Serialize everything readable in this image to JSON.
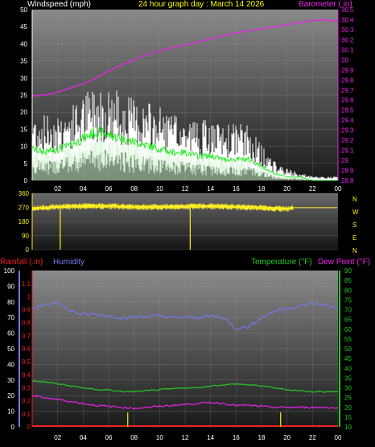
{
  "header": {
    "wind_title": "Windspeed (mph)",
    "graph_title": "24 hour graph day : March 14 2026",
    "baro_title": "Barometer (.in)"
  },
  "bottom_header": {
    "rain_title": "Rainfall (.in)",
    "hum_title": "Humidity",
    "temp_title": "Temperature (°F)",
    "dew_title": "Dew Point (°F)"
  },
  "colors": {
    "wind_gust": "#ffffff",
    "wind_avg": "#c8f0c8",
    "wind_dir_line": "#22ee22",
    "barometer": "#ee22ee",
    "direction": "#ffee22",
    "rain": "#ee2222",
    "humidity": "#7777ee",
    "temperature": "#22cc22",
    "dewpoint": "#ee22ee",
    "title": "#ffff00"
  },
  "chart_data": [
    {
      "type": "line",
      "title": "24 hour graph day : March 14 2026",
      "x_ticks": [
        "02",
        "04",
        "06",
        "08",
        "10",
        "12",
        "14",
        "16",
        "18",
        "20",
        "22",
        "00"
      ],
      "ylabel": "Windspeed (mph)",
      "ylim": [
        0,
        50
      ],
      "y_ticks": [
        "0",
        "5",
        "10",
        "15",
        "20",
        "25",
        "30",
        "35",
        "40",
        "45",
        "50"
      ],
      "y2label": "Barometer (.in)",
      "y2lim": [
        28.8,
        30.5
      ],
      "y2_ticks": [
        "28.8",
        "28.9",
        "29",
        "29.1",
        "29.2",
        "29.3",
        "29.4",
        "29.5",
        "29.6",
        "29.7",
        "29.8",
        "29.9",
        "30",
        "30.1",
        "30.2",
        "30.3",
        "30.4",
        "30.5"
      ],
      "series": [
        {
          "name": "Windspeed (mph)",
          "hours": [
            0,
            1,
            2,
            3,
            4,
            5,
            6,
            7,
            8,
            9,
            10,
            11,
            12,
            13,
            14,
            15,
            16,
            17,
            18,
            19,
            20,
            21,
            22,
            23,
            24
          ],
          "peak": [
            18,
            17,
            18,
            19,
            22,
            25,
            24,
            23,
            21,
            20,
            19,
            17,
            16,
            16,
            15,
            14,
            15,
            14,
            9,
            5,
            3,
            2,
            1,
            1,
            1
          ],
          "avg": [
            9,
            8,
            9,
            10,
            12,
            14,
            13,
            12,
            11,
            10,
            9,
            8,
            8,
            7,
            7,
            6,
            6,
            6,
            4,
            2,
            1,
            1,
            0,
            0,
            0
          ]
        },
        {
          "name": "Barometer (.in)",
          "hours": [
            0,
            1,
            2,
            3,
            4,
            5,
            6,
            7,
            8,
            9,
            10,
            11,
            12,
            13,
            14,
            15,
            16,
            17,
            18,
            19,
            20,
            21,
            22,
            23,
            24
          ],
          "values": [
            29.64,
            29.65,
            29.68,
            29.72,
            29.76,
            29.82,
            29.89,
            29.95,
            30.0,
            30.05,
            30.09,
            30.12,
            30.15,
            30.18,
            30.21,
            30.24,
            30.27,
            30.29,
            30.31,
            30.33,
            30.35,
            30.37,
            30.39,
            30.4,
            30.38
          ]
        }
      ]
    },
    {
      "type": "line",
      "x_ticks": [
        "02",
        "04",
        "06",
        "08",
        "10",
        "12",
        "14",
        "16",
        "18",
        "20",
        "22",
        "00"
      ],
      "y_ticks": [
        "0",
        "90",
        "180",
        "270",
        "360"
      ],
      "ylim": [
        0,
        360
      ],
      "compass": [
        "N",
        "W",
        "S",
        "E",
        "N"
      ],
      "series": [
        {
          "name": "Wind direction",
          "hours": [
            0,
            2,
            4,
            6,
            8,
            10,
            12,
            14,
            16,
            18,
            20,
            20.5,
            24
          ],
          "values": [
            265,
            275,
            280,
            280,
            275,
            275,
            278,
            280,
            275,
            270,
            262,
            270,
            268
          ]
        }
      ],
      "spikes_hours": [
        2.2,
        12.4
      ]
    },
    {
      "type": "line",
      "x_ticks": [
        "02",
        "04",
        "06",
        "08",
        "10",
        "12",
        "14",
        "16",
        "18",
        "20",
        "22",
        "00"
      ],
      "y_left_ticks": [
        "0",
        "10",
        "20",
        "30",
        "40",
        "50",
        "60",
        "70",
        "80",
        "90",
        "100"
      ],
      "y_rain_ticks": [
        "0",
        "0.1",
        "0.2",
        "0.3",
        "0.4",
        "0.5",
        "0.6",
        "0.7",
        "0.8",
        "0.9",
        "1",
        "1.1"
      ],
      "y_right_ticks": [
        "10",
        "15",
        "20",
        "25",
        "30",
        "35",
        "40",
        "45",
        "50",
        "55",
        "60",
        "65",
        "70",
        "75",
        "80",
        "85",
        "90"
      ],
      "ylim_humidity": [
        0,
        100
      ],
      "ylim_rain": [
        0,
        1.2
      ],
      "ylim_temp": [
        10,
        90
      ],
      "series": [
        {
          "name": "Humidity",
          "hours": [
            0,
            1,
            2,
            3,
            4,
            5,
            6,
            7,
            8,
            9,
            10,
            11,
            12,
            13,
            14,
            15,
            16,
            17,
            18,
            19,
            20,
            21,
            22,
            23,
            24
          ],
          "values": [
            75,
            78,
            80,
            74,
            72,
            72,
            71,
            70,
            70,
            71,
            71,
            70,
            70,
            70,
            71,
            70,
            63,
            64,
            70,
            74,
            76,
            77,
            79,
            78,
            76
          ]
        },
        {
          "name": "Temperature (°F)",
          "hours": [
            0,
            1,
            2,
            3,
            4,
            5,
            6,
            7,
            8,
            9,
            10,
            11,
            12,
            13,
            14,
            15,
            16,
            17,
            18,
            19,
            20,
            21,
            22,
            23,
            24
          ],
          "values": [
            33.5,
            33,
            32,
            31,
            30,
            29,
            29,
            28,
            28,
            28.5,
            29,
            29.5,
            30,
            30,
            31,
            31.5,
            32,
            31.5,
            31,
            30,
            29,
            28.5,
            28,
            28,
            28
          ]
        },
        {
          "name": "Dew Point (°F)",
          "hours": [
            0,
            1,
            2,
            3,
            4,
            5,
            6,
            7,
            8,
            9,
            10,
            11,
            12,
            13,
            14,
            15,
            16,
            17,
            18,
            19,
            20,
            21,
            22,
            23,
            24
          ],
          "values": [
            26,
            25,
            24,
            23,
            22,
            21,
            20.5,
            20,
            19.5,
            20,
            20.5,
            21,
            21.5,
            22,
            22.5,
            22,
            21,
            21,
            20.5,
            20,
            20,
            20,
            20,
            20,
            19.5
          ]
        },
        {
          "name": "Rainfall (.in)",
          "hours": [
            0,
            24
          ],
          "values": [
            0,
            0
          ]
        }
      ],
      "rain_ticks_hours": [
        7.5,
        19.5
      ]
    }
  ]
}
